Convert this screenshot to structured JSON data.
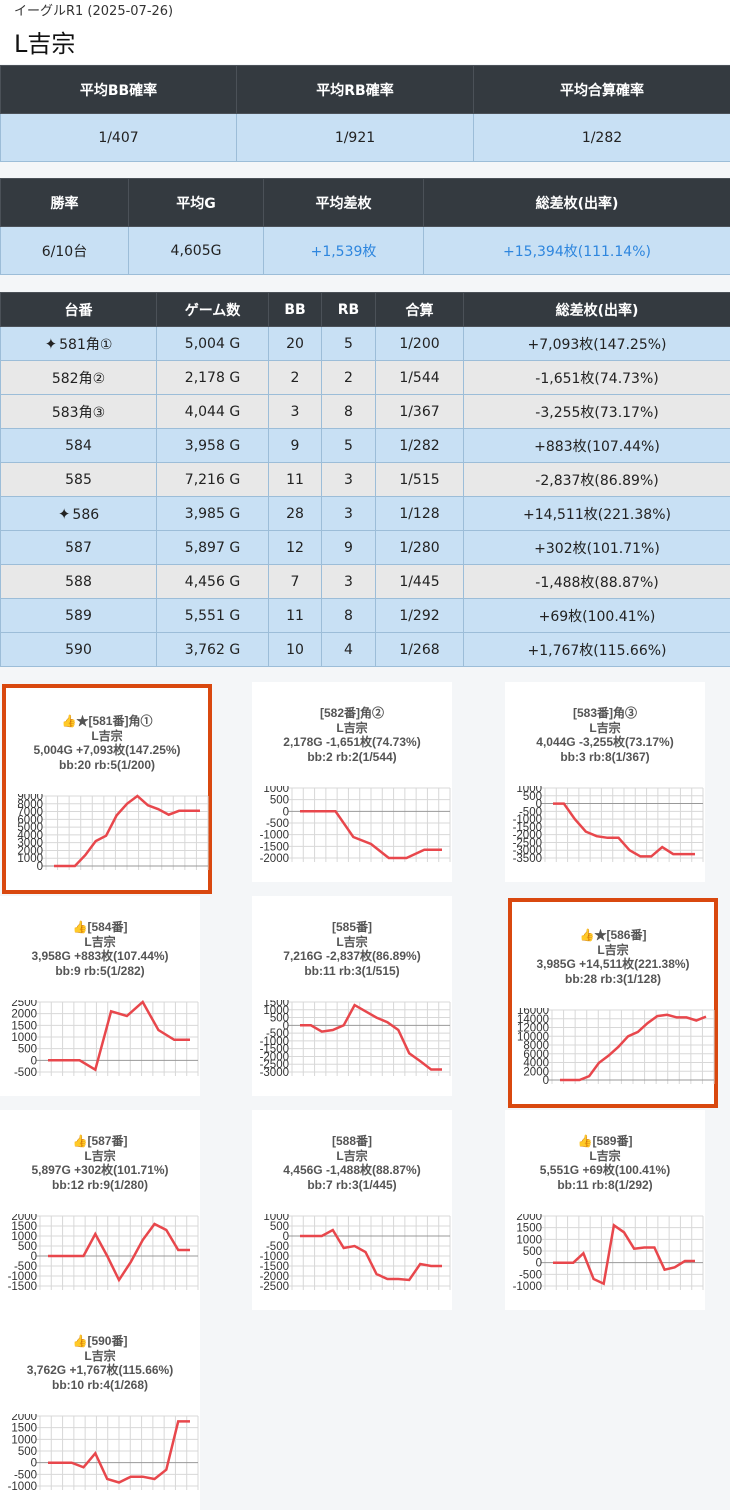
{
  "header": {
    "site_title": "イーグルR1 (2025-07-26)",
    "machine": "L吉宗"
  },
  "prob_table": {
    "headers": [
      "平均BB確率",
      "平均RB確率",
      "平均合算確率"
    ],
    "values": [
      "1/407",
      "1/921",
      "1/282"
    ]
  },
  "summary_table": {
    "headers": [
      "勝率",
      "平均G",
      "平均差枚",
      "総差枚(出率)"
    ],
    "values": [
      "6/10台",
      "4,605G",
      "+1,539枚",
      "+15,394枚(111.14%)"
    ]
  },
  "machines_table": {
    "headers": [
      "台番",
      "ゲーム数",
      "BB",
      "RB",
      "合算",
      "総差枚(出率)"
    ],
    "rows": [
      {
        "unit": "581角①",
        "games": "5,004 G",
        "bb": "20",
        "rb": "5",
        "total": "1/200",
        "diff": "+7,093枚(147.25%)",
        "sparkle": true,
        "style": "blue"
      },
      {
        "unit": "582角②",
        "games": "2,178 G",
        "bb": "2",
        "rb": "2",
        "total": "1/544",
        "diff": "-1,651枚(74.73%)",
        "sparkle": false,
        "style": "gray"
      },
      {
        "unit": "583角③",
        "games": "4,044 G",
        "bb": "3",
        "rb": "8",
        "total": "1/367",
        "diff": "-3,255枚(73.17%)",
        "sparkle": false,
        "style": "gray"
      },
      {
        "unit": "584",
        "games": "3,958 G",
        "bb": "9",
        "rb": "5",
        "total": "1/282",
        "diff": "+883枚(107.44%)",
        "sparkle": false,
        "style": "blue"
      },
      {
        "unit": "585",
        "games": "7,216 G",
        "bb": "11",
        "rb": "3",
        "total": "1/515",
        "diff": "-2,837枚(86.89%)",
        "sparkle": false,
        "style": "gray"
      },
      {
        "unit": "586",
        "games": "3,985 G",
        "bb": "28",
        "rb": "3",
        "total": "1/128",
        "diff": "+14,511枚(221.38%)",
        "sparkle": true,
        "style": "blue"
      },
      {
        "unit": "587",
        "games": "5,897 G",
        "bb": "12",
        "rb": "9",
        "total": "1/280",
        "diff": "+302枚(101.71%)",
        "sparkle": false,
        "style": "blue"
      },
      {
        "unit": "588",
        "games": "4,456 G",
        "bb": "7",
        "rb": "3",
        "total": "1/445",
        "diff": "-1,488枚(88.87%)",
        "sparkle": false,
        "style": "gray"
      },
      {
        "unit": "589",
        "games": "5,551 G",
        "bb": "11",
        "rb": "8",
        "total": "1/292",
        "diff": "+69枚(100.41%)",
        "sparkle": false,
        "style": "blue"
      },
      {
        "unit": "590",
        "games": "3,762 G",
        "bb": "10",
        "rb": "4",
        "total": "1/268",
        "diff": "+1,767枚(115.66%)",
        "sparkle": false,
        "style": "blue"
      }
    ]
  },
  "colors": {
    "line": "#e8474c",
    "header_bg": "#343a40",
    "row_blue": "#c8e0f4",
    "row_gray": "#e8e8e8",
    "plus": "#2e86de",
    "highlight": "#d9480f"
  },
  "chart_data": [
    {
      "type": "line",
      "title": "👍★[581番]角①",
      "subtitle": "L吉宗",
      "line3": "5,004G +7,093枚(147.25%)",
      "line4": "bb:20 rb:5(1/200)",
      "ylim": [
        0,
        9000
      ],
      "yticks": [
        "9000",
        "8000",
        "7000",
        "6000",
        "5000",
        "4000",
        "3000",
        "2000",
        "1000",
        "0"
      ],
      "y": [
        0,
        0,
        0,
        1400,
        3200,
        3900,
        6500,
        8000,
        9000,
        7800,
        7300,
        6600,
        7100,
        7100,
        7100
      ],
      "highlighted": true
    },
    {
      "type": "line",
      "title": "[582番]角②",
      "subtitle": "L吉宗",
      "line3": "2,178G -1,651枚(74.73%)",
      "line4": "bb:2 rb:2(1/544)",
      "ylim": [
        -2000,
        1000
      ],
      "yticks": [
        "1000",
        "500",
        "0",
        "-500",
        "-1000",
        "-1500",
        "-2000"
      ],
      "y": [
        0,
        0,
        0,
        -1100,
        -1400,
        -2000,
        -2000,
        -1650,
        -1650
      ],
      "highlighted": false
    },
    {
      "type": "line",
      "title": "[583番]角③",
      "subtitle": "L吉宗",
      "line3": "4,044G -3,255枚(73.17%)",
      "line4": "bb:3 rb:8(1/367)",
      "ylim": [
        -3500,
        1000
      ],
      "yticks": [
        "1000",
        "500",
        "0",
        "-500",
        "-1000",
        "-1500",
        "-2000",
        "-2500",
        "-3000",
        "-3500"
      ],
      "y": [
        0,
        0,
        -1000,
        -1800,
        -2100,
        -2200,
        -2200,
        -3000,
        -3400,
        -3400,
        -2800,
        -3250,
        -3250,
        -3250
      ],
      "highlighted": false
    },
    {
      "type": "line",
      "title": "👍[584番]",
      "subtitle": "L吉宗",
      "line3": "3,958G +883枚(107.44%)",
      "line4": "bb:9 rb:5(1/282)",
      "ylim": [
        -500,
        2500
      ],
      "yticks": [
        "2500",
        "2000",
        "1500",
        "1000",
        "500",
        "0",
        "-500"
      ],
      "y": [
        0,
        0,
        0,
        -400,
        2100,
        1900,
        2500,
        1300,
        880,
        880
      ],
      "highlighted": false
    },
    {
      "type": "line",
      "title": "[585番]",
      "subtitle": "L吉宗",
      "line3": "7,216G -2,837枚(86.89%)",
      "line4": "bb:11 rb:3(1/515)",
      "ylim": [
        -3000,
        1500
      ],
      "yticks": [
        "1500",
        "1000",
        "500",
        "0",
        "-500",
        "-1000",
        "-1500",
        "-2000",
        "-2500",
        "-3000"
      ],
      "y": [
        0,
        0,
        -400,
        -300,
        0,
        1300,
        900,
        500,
        200,
        -300,
        -1800,
        -2300,
        -2840,
        -2840
      ],
      "highlighted": false
    },
    {
      "type": "line",
      "title": "👍★[586番]",
      "subtitle": "L吉宗",
      "line3": "3,985G +14,511枚(221.38%)",
      "line4": "bb:28 rb:3(1/128)",
      "ylim": [
        0,
        16000
      ],
      "yticks": [
        "16000",
        "14000",
        "12000",
        "10000",
        "8000",
        "6000",
        "4000",
        "2000",
        "0"
      ],
      "y": [
        0,
        0,
        0,
        900,
        3900,
        5600,
        7600,
        10000,
        11000,
        13000,
        14600,
        14900,
        14300,
        14300,
        13600,
        14500
      ],
      "highlighted": true
    },
    {
      "type": "line",
      "title": "👍[587番]",
      "subtitle": "L吉宗",
      "line3": "5,897G +302枚(101.71%)",
      "line4": "bb:12 rb:9(1/280)",
      "ylim": [
        -1500,
        2000
      ],
      "yticks": [
        "2000",
        "1500",
        "1000",
        "500",
        "0",
        "-500",
        "-1000",
        "-1500"
      ],
      "y": [
        0,
        0,
        0,
        0,
        1100,
        0,
        -1200,
        -300,
        800,
        1600,
        1300,
        300,
        300
      ],
      "highlighted": false
    },
    {
      "type": "line",
      "title": "[588番]",
      "subtitle": "L吉宗",
      "line3": "4,456G -1,488枚(88.87%)",
      "line4": "bb:7 rb:3(1/445)",
      "ylim": [
        -2500,
        1000
      ],
      "yticks": [
        "1000",
        "500",
        "0",
        "-500",
        "-1000",
        "-1500",
        "-2000",
        "-2500"
      ],
      "y": [
        0,
        0,
        0,
        300,
        -600,
        -500,
        -800,
        -1900,
        -2150,
        -2150,
        -2200,
        -1400,
        -1500,
        -1500
      ],
      "highlighted": false
    },
    {
      "type": "line",
      "title": "👍[589番]",
      "subtitle": "L吉宗",
      "line3": "5,551G +69枚(100.41%)",
      "line4": "bb:11 rb:8(1/292)",
      "ylim": [
        -1000,
        2000
      ],
      "yticks": [
        "2000",
        "1500",
        "1000",
        "500",
        "0",
        "-500",
        "-1000"
      ],
      "y": [
        0,
        0,
        0,
        400,
        -700,
        -900,
        1600,
        1300,
        600,
        650,
        650,
        -300,
        -200,
        70,
        70
      ],
      "highlighted": false
    },
    {
      "type": "line",
      "title": "👍[590番]",
      "subtitle": "L吉宗",
      "line3": "3,762G +1,767枚(115.66%)",
      "line4": "bb:10 rb:4(1/268)",
      "ylim": [
        -1000,
        2000
      ],
      "yticks": [
        "2000",
        "1500",
        "1000",
        "500",
        "0",
        "-500",
        "-1000"
      ],
      "y": [
        0,
        0,
        0,
        -200,
        400,
        -700,
        -850,
        -600,
        -600,
        -700,
        -300,
        1770,
        1770
      ],
      "highlighted": false
    }
  ]
}
